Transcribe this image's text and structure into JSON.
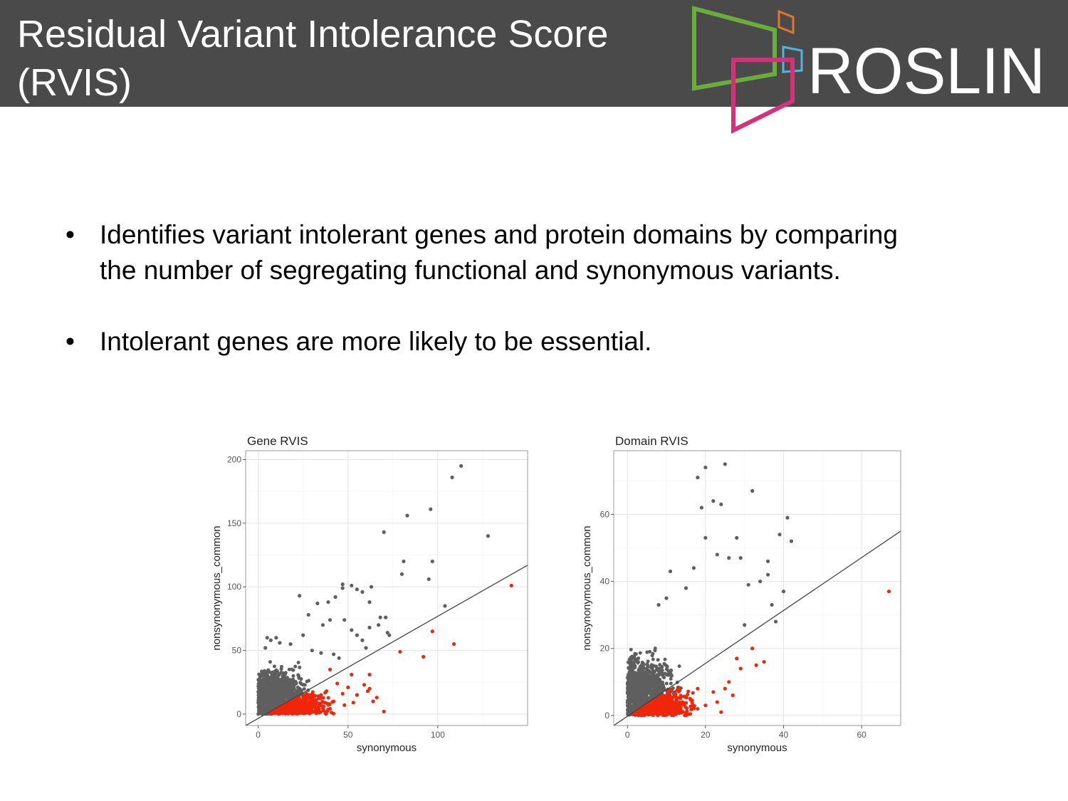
{
  "header": {
    "title_line1": "Residual Variant Intolerance Score",
    "title_line2": "(RVIS)",
    "logo_text": "ROSLIN",
    "colors": {
      "background": "#4a4a4a",
      "green": "#6aad3d",
      "magenta": "#d4317a",
      "orange": "#e0772e",
      "blue": "#4db6e5"
    }
  },
  "bullets": [
    {
      "symbol": "•",
      "text": "Identifies variant intolerant genes and protein domains by comparing the number of segregating functional and synonymous variants."
    },
    {
      "symbol": "•",
      "text": "Intolerant genes are more likely to be essential."
    }
  ],
  "chart_data": [
    {
      "type": "scatter",
      "title": "Gene RVIS",
      "xlabel": "synonymous",
      "ylabel": "nonsynonymous_common",
      "xlim": [
        -7,
        150
      ],
      "ylim": [
        -9,
        207
      ],
      "xticks": [
        0,
        50,
        100
      ],
      "yticks": [
        0,
        50,
        100,
        150,
        200
      ],
      "regression_line": {
        "x": [
          -7,
          150
        ],
        "y": [
          -9,
          117
        ]
      },
      "colors": {
        "tolerant": "#5f5f5f",
        "intolerant": "#f0260a",
        "line": "#444444"
      },
      "series": [
        {
          "name": "",
          "color": "#5f5f5f",
          "points": [
            [
              113,
              195
            ],
            [
              108,
              186
            ],
            [
              83,
              156
            ],
            [
              96,
              161
            ],
            [
              128,
              140
            ],
            [
              70,
              143
            ],
            [
              81,
              120
            ],
            [
              97,
              120
            ],
            [
              80,
              110
            ],
            [
              95,
              106
            ],
            [
              104,
              85
            ],
            [
              47,
              102
            ],
            [
              52,
              101
            ],
            [
              47,
              99
            ],
            [
              55,
              98
            ],
            [
              58,
              96
            ],
            [
              63,
              100
            ],
            [
              23,
              93
            ],
            [
              62,
              88
            ],
            [
              68,
              76
            ],
            [
              67,
              70
            ],
            [
              71,
              76
            ],
            [
              62,
              68
            ],
            [
              73,
              62
            ],
            [
              72,
              64
            ],
            [
              43,
              92
            ],
            [
              39,
              88
            ],
            [
              33,
              87
            ],
            [
              28,
              78
            ],
            [
              40,
              74
            ],
            [
              36,
              70
            ],
            [
              48,
              74
            ],
            [
              52,
              66
            ],
            [
              55,
              62
            ],
            [
              58,
              58
            ],
            [
              60,
              52
            ],
            [
              5,
              60
            ],
            [
              7,
              58
            ],
            [
              10,
              60
            ],
            [
              4,
              52
            ],
            [
              12,
              56
            ],
            [
              18,
              55
            ],
            [
              25,
              62
            ],
            [
              30,
              50
            ],
            [
              35,
              48
            ],
            [
              42,
              47
            ],
            [
              45,
              44
            ]
          ]
        },
        {
          "name": "",
          "color": "#f0260a",
          "points": [
            [
              141,
              101
            ],
            [
              97,
              65
            ],
            [
              109,
              55
            ],
            [
              79,
              49
            ],
            [
              92,
              45
            ],
            [
              62,
              31
            ],
            [
              59,
              23
            ],
            [
              62,
              20
            ],
            [
              64,
              10
            ],
            [
              61,
              18
            ],
            [
              66,
              13
            ],
            [
              70,
              2
            ],
            [
              50,
              21
            ],
            [
              53,
              9
            ],
            [
              52,
              31
            ],
            [
              47,
              16
            ],
            [
              55,
              15
            ],
            [
              40,
              35
            ],
            [
              44,
              24
            ],
            [
              38,
              18
            ],
            [
              35,
              15
            ],
            [
              42,
              10
            ],
            [
              30,
              12
            ],
            [
              48,
              7
            ]
          ]
        }
      ],
      "clusters": [
        {
          "name": "",
          "color": "#5f5f5f",
          "x_center": 12,
          "y_center": 14,
          "x_spread": 10,
          "y_spread": 12,
          "count": 1100
        },
        {
          "name": "",
          "color": "#f0260a",
          "x_center": 22,
          "y_center": 6,
          "x_spread": 12,
          "y_spread": 6,
          "count": 520
        }
      ]
    },
    {
      "type": "scatter",
      "title": "Domain RVIS",
      "xlabel": "synonymous",
      "ylabel": "nonsynonymous_common",
      "xlim": [
        -3.5,
        70
      ],
      "ylim": [
        -3,
        79
      ],
      "xticks": [
        0,
        20,
        40,
        60
      ],
      "yticks": [
        0,
        20,
        40,
        60
      ],
      "regression_line": {
        "x": [
          -3.5,
          70
        ],
        "y": [
          -3,
          55
        ]
      },
      "colors": {
        "tolerant": "#5f5f5f",
        "intolerant": "#f0260a",
        "line": "#444444"
      },
      "series": [
        {
          "name": "",
          "color": "#5f5f5f",
          "points": [
            [
              20,
              74
            ],
            [
              25,
              75
            ],
            [
              18,
              71
            ],
            [
              32,
              67
            ],
            [
              22,
              64
            ],
            [
              24,
              63
            ],
            [
              19,
              62
            ],
            [
              41,
              59
            ],
            [
              20,
              53
            ],
            [
              28,
              53
            ],
            [
              39,
              54
            ],
            [
              42,
              52
            ],
            [
              36,
              46
            ],
            [
              40,
              37
            ],
            [
              11,
              43
            ],
            [
              17,
              44
            ],
            [
              23,
              48
            ],
            [
              26,
              47
            ],
            [
              29,
              47
            ],
            [
              36,
              42
            ],
            [
              34,
              40
            ],
            [
              31,
              39
            ],
            [
              15,
              38
            ],
            [
              10,
              35
            ],
            [
              8,
              33
            ],
            [
              37,
              33
            ],
            [
              38,
              28
            ],
            [
              30,
              27
            ]
          ]
        },
        {
          "name": "",
          "color": "#f0260a",
          "points": [
            [
              67,
              37
            ],
            [
              32,
              20
            ],
            [
              28,
              17
            ],
            [
              33,
              15
            ],
            [
              35,
              16
            ],
            [
              29,
              14
            ],
            [
              26,
              10
            ],
            [
              25,
              8
            ],
            [
              27,
              6
            ],
            [
              23,
              4
            ],
            [
              24,
              1
            ],
            [
              20,
              3
            ],
            [
              22,
              7
            ],
            [
              18,
              8
            ]
          ]
        }
      ],
      "clusters": [
        {
          "name": "",
          "color": "#5f5f5f",
          "x_center": 5,
          "y_center": 7,
          "x_spread": 5,
          "y_spread": 6,
          "count": 1000
        },
        {
          "name": "",
          "color": "#f0260a",
          "x_center": 9,
          "y_center": 3,
          "x_spread": 5,
          "y_spread": 3,
          "count": 480
        }
      ]
    }
  ]
}
